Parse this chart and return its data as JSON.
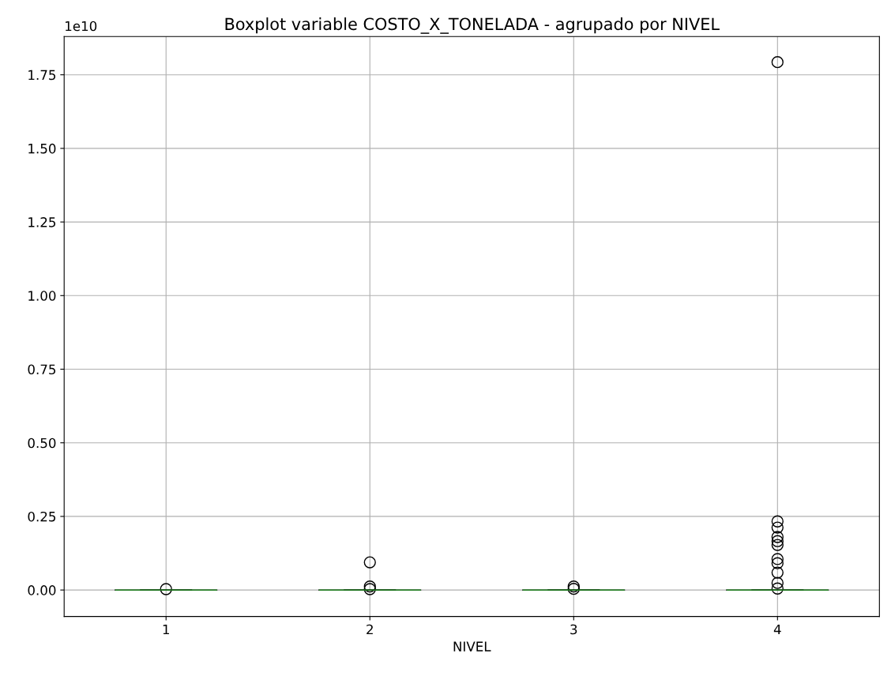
{
  "chart_data": {
    "type": "box",
    "title": "Boxplot variable COSTO_X_TONELADA - agrupado por NIVEL",
    "xlabel": "NIVEL",
    "annotations": [
      "1e10"
    ],
    "categories": [
      "1",
      "2",
      "3",
      "4"
    ],
    "boxes": [
      {
        "low": 0,
        "q1": 0,
        "median": 0,
        "q3": 0,
        "high": 0,
        "outliers": [
          0.003
        ]
      },
      {
        "low": 0,
        "q1": 0,
        "median": 0,
        "q3": 0,
        "high": 0,
        "outliers": [
          0.003,
          0.012,
          0.094
        ]
      },
      {
        "low": 0,
        "q1": 0,
        "median": 0,
        "q3": 0,
        "high": 0,
        "outliers": [
          0.004,
          0.012
        ]
      },
      {
        "low": 0,
        "q1": 0,
        "median": 0,
        "q3": 0,
        "high": 0,
        "outliers": [
          0.005,
          0.024,
          0.059,
          0.091,
          0.105,
          0.153,
          0.166,
          0.18,
          0.212,
          0.233,
          1.793
        ]
      }
    ],
    "color": "#000000",
    "ylim": [
      -0.09,
      1.88
    ],
    "yticks": [
      {
        "value": 0,
        "label": "0.00"
      },
      {
        "value": 0.25,
        "label": "0.25"
      },
      {
        "value": 0.5,
        "label": "0.50"
      },
      {
        "value": 0.75,
        "label": "0.75"
      },
      {
        "value": 1.0,
        "label": "1.00"
      },
      {
        "value": 1.25,
        "label": "1.25"
      },
      {
        "value": 1.5,
        "label": "1.50"
      },
      {
        "value": 1.75,
        "label": "1.75"
      }
    ],
    "grid": true,
    "marker": "circle"
  }
}
